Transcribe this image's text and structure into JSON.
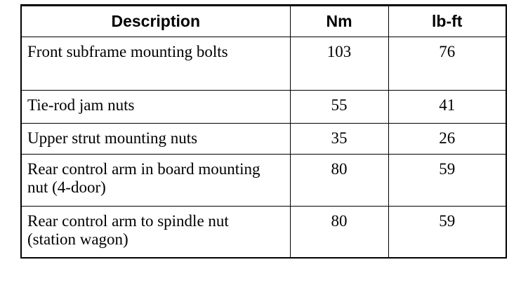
{
  "table": {
    "headers": [
      "Description",
      "Nm",
      "lb-ft"
    ],
    "rows": [
      {
        "description": "Front subframe mounting bolts",
        "nm": "103",
        "lbft": "76"
      },
      {
        "description": "Tie-rod jam nuts",
        "nm": "55",
        "lbft": "41"
      },
      {
        "description": "Upper strut mounting nuts",
        "nm": "35",
        "lbft": "26"
      },
      {
        "description": "Rear control arm in board mounting nut (4-door)",
        "nm": "80",
        "lbft": "59"
      },
      {
        "description": "Rear control arm to spindle nut (station wagon)",
        "nm": "80",
        "lbft": "59"
      }
    ]
  }
}
